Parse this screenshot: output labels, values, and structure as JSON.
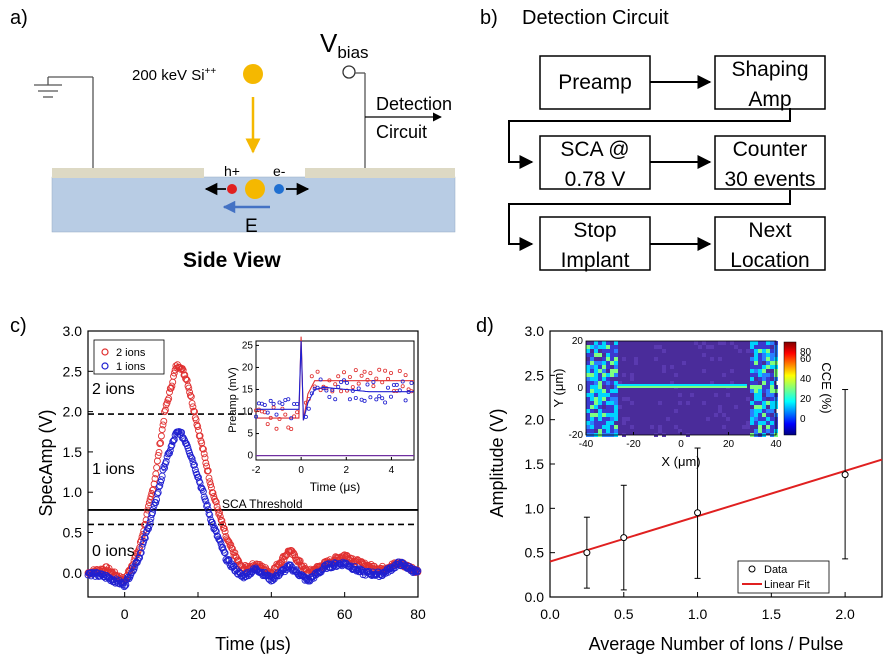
{
  "panel_a": {
    "letter": "a)",
    "ion_label": "200 keV Si",
    "ion_charge": "++",
    "vbias_main": "V",
    "vbias_sub": "bias",
    "detection_line1": "Detection",
    "detection_line2": "Circuit",
    "hole_label": "h+",
    "electron_label": "e-",
    "field_label": "E",
    "caption": "Side View",
    "colors": {
      "ion": "#f5b800",
      "substrate": "#b8cce4",
      "electrode": "#ddd9c4",
      "hole": "#e02020",
      "electron": "#1f6fd1",
      "field_arrow": "#4472c4"
    }
  },
  "panel_b": {
    "letter": "b)",
    "title": "Detection Circuit",
    "boxes": [
      {
        "lines": [
          "Preamp"
        ]
      },
      {
        "lines": [
          "Shaping",
          "Amp"
        ]
      },
      {
        "lines": [
          "SCA @",
          "0.78 V"
        ]
      },
      {
        "lines": [
          "Counter",
          "30 events"
        ]
      },
      {
        "lines": [
          "Stop",
          "Implant"
        ]
      },
      {
        "lines": [
          "Next",
          "Location"
        ]
      }
    ]
  },
  "panel_c": {
    "letter": "c)",
    "xlabel": "Time (μs)",
    "ylabel": "SpecAmp (V)",
    "region_labels": [
      "2 ions",
      "1 ions",
      "0 ions"
    ],
    "threshold_label": "SCA Threshold",
    "legend": [
      "2 ions",
      "1 ions"
    ],
    "inset_ylabel": "Preamp (mV)",
    "inset_xlabel": "Time (μs)",
    "colors": {
      "two_ions": "#e03030",
      "one_ion": "#2020d0"
    }
  },
  "panel_d": {
    "letter": "d)",
    "xlabel": "Average Number of Ions / Pulse",
    "ylabel": "Amplitude (V)",
    "legend": [
      "Data",
      "Linear Fit"
    ],
    "inset_xlabel": "X (μm)",
    "inset_ylabel": "Y (μm)",
    "colorbar_label": "CCE (%)",
    "colors": {
      "fit": "#e02020"
    }
  },
  "chart_data": [
    {
      "type": "line",
      "title": "",
      "xlabel": "Time (μs)",
      "ylabel": "SpecAmp (V)",
      "xlim": [
        -10,
        80
      ],
      "ylim": [
        -0.3,
        3.0
      ],
      "xticks": [
        "0",
        "20",
        "40",
        "60",
        "80"
      ],
      "yticks": [
        "0.0",
        "0.5",
        "1.0",
        "1.5",
        "2.0",
        "2.5",
        "3.0"
      ],
      "reference_lines": {
        "threshold": 0.78,
        "upper_dashed": 1.97,
        "lower_dashed": 0.6
      },
      "series": [
        {
          "name": "2 ions",
          "x": [
            -10,
            -5,
            0,
            4,
            8,
            11,
            14,
            15,
            17,
            20,
            24,
            28,
            32,
            36,
            40,
            45,
            50,
            55,
            60,
            65,
            70,
            75,
            80
          ],
          "values": [
            0.0,
            0.05,
            -0.1,
            0.3,
            1.1,
            2.0,
            2.55,
            2.58,
            2.4,
            1.8,
            1.0,
            0.4,
            0.05,
            0.1,
            0.0,
            0.28,
            0.0,
            0.12,
            0.22,
            0.1,
            0.05,
            0.12,
            0.02
          ]
        },
        {
          "name": "1 ions",
          "x": [
            -10,
            -5,
            0,
            4,
            8,
            11,
            14,
            15,
            17,
            20,
            24,
            28,
            32,
            36,
            40,
            45,
            50,
            55,
            60,
            65,
            70,
            75,
            80
          ],
          "values": [
            0.0,
            -0.05,
            -0.15,
            0.2,
            0.8,
            1.35,
            1.72,
            1.75,
            1.6,
            1.2,
            0.6,
            0.15,
            -0.05,
            0.05,
            -0.08,
            0.08,
            -0.1,
            0.08,
            0.12,
            0.0,
            -0.02,
            0.12,
            0.0
          ]
        }
      ],
      "inset": {
        "xlabel": "Time (μs)",
        "ylabel": "Preamp (mV)",
        "xlim": [
          -2,
          5
        ],
        "ylim": [
          -1,
          26
        ],
        "xticks": [
          "-2",
          "0",
          "2",
          "4"
        ],
        "yticks": [
          "0",
          "5",
          "10",
          "15",
          "20",
          "25"
        ],
        "series": [
          {
            "name": "2 ions",
            "x": [
              -2,
              -1,
              -0.1,
              0,
              0.1,
              0.3,
              0.6,
              1,
              2,
              3,
              4,
              5
            ],
            "values": [
              8.5,
              8.5,
              8.5,
              27,
              8,
              14,
              17,
              17,
              17,
              17,
              17,
              17
            ]
          },
          {
            "name": "1 ions",
            "x": [
              -2,
              -1,
              -0.1,
              0,
              0.1,
              0.3,
              0.6,
              1,
              2,
              3,
              4,
              5
            ],
            "values": [
              10.5,
              10.5,
              10.5,
              26,
              8,
              12,
              15,
              15.5,
              15,
              14.5,
              14.5,
              14.5
            ]
          },
          {
            "name": "baseline",
            "x": [
              -2,
              0,
              5
            ],
            "values": [
              0,
              0,
              0
            ]
          }
        ]
      }
    },
    {
      "type": "scatter",
      "title": "",
      "xlabel": "Average Number of Ions / Pulse",
      "ylabel": "Amplitude (V)",
      "xlim": [
        0.0,
        2.25
      ],
      "ylim": [
        0.0,
        3.0
      ],
      "xticks": [
        "0.0",
        "0.5",
        "1.0",
        "1.5",
        "2.0"
      ],
      "yticks": [
        "0.0",
        "0.5",
        "1.0",
        "1.5",
        "2.0",
        "2.5",
        "3.0"
      ],
      "series": [
        {
          "name": "Data",
          "x": [
            0.25,
            0.5,
            1.0,
            2.0
          ],
          "values": [
            0.5,
            0.67,
            0.95,
            1.38
          ],
          "error_low": [
            0.1,
            0.08,
            0.21,
            0.43
          ],
          "error_high": [
            0.9,
            1.26,
            1.68,
            2.34
          ]
        },
        {
          "name": "Linear Fit",
          "x": [
            0.0,
            2.25
          ],
          "values": [
            0.4,
            1.55
          ]
        }
      ],
      "inset": {
        "type": "heatmap",
        "xlabel": "X (μm)",
        "ylabel": "Y (μm)",
        "xticks": [
          "-40",
          "-20",
          "0",
          "20",
          "40"
        ],
        "yticks": [
          "20",
          "0",
          "-20"
        ],
        "colorbar_label": "CCE (%)",
        "colorbar_ticks": [
          "80",
          "60",
          "40",
          "20",
          "0"
        ]
      }
    }
  ]
}
